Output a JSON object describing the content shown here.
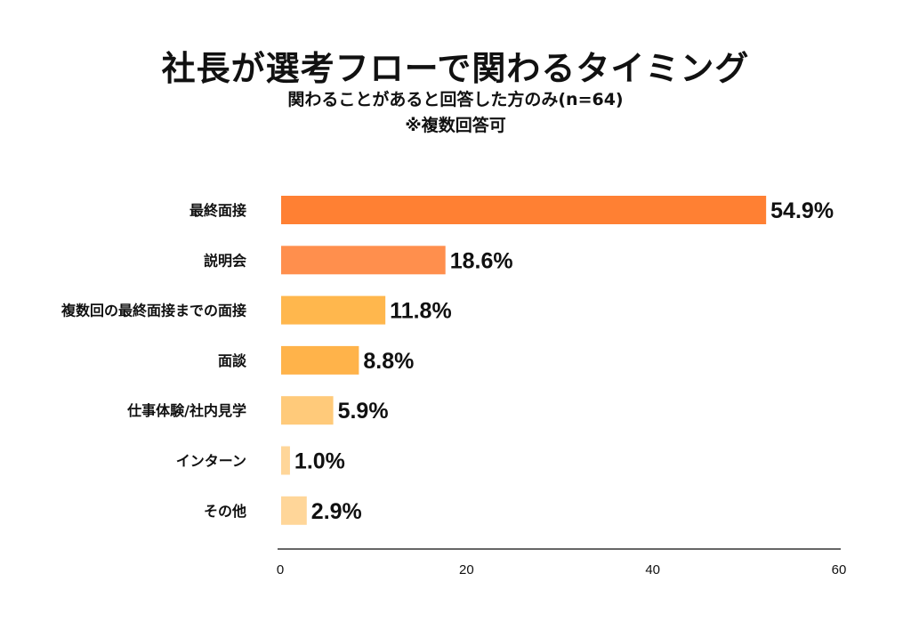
{
  "chart_data": {
    "type": "bar",
    "orientation": "horizontal",
    "title": "社長が選考フローで関わるタイミング",
    "subtitle": "関わることがあると回答した方のみ(n=64)",
    "note": "※複数回答可",
    "categories": [
      "最終面接",
      "説明会",
      "複数回の最終面接までの面接",
      "面談",
      "仕事体験/社内見学",
      "インターン",
      "その他"
    ],
    "values": [
      54.9,
      18.6,
      11.8,
      8.8,
      5.9,
      1.0,
      2.9
    ],
    "value_labels": [
      "54.9%",
      "18.6%",
      "11.8%",
      "8.8%",
      "5.9%",
      "1.0%",
      "2.9%"
    ],
    "colors": [
      "#FF8033",
      "#FF8F4D",
      "#FFB74D",
      "#FFB34A",
      "#FFCA7A",
      "#FFD699",
      "#FFD699"
    ],
    "xlim": [
      0,
      60
    ],
    "xticks": [
      "0",
      "20",
      "40",
      "60"
    ],
    "xlabel": "",
    "ylabel": "",
    "grid": false,
    "legend": "none"
  }
}
